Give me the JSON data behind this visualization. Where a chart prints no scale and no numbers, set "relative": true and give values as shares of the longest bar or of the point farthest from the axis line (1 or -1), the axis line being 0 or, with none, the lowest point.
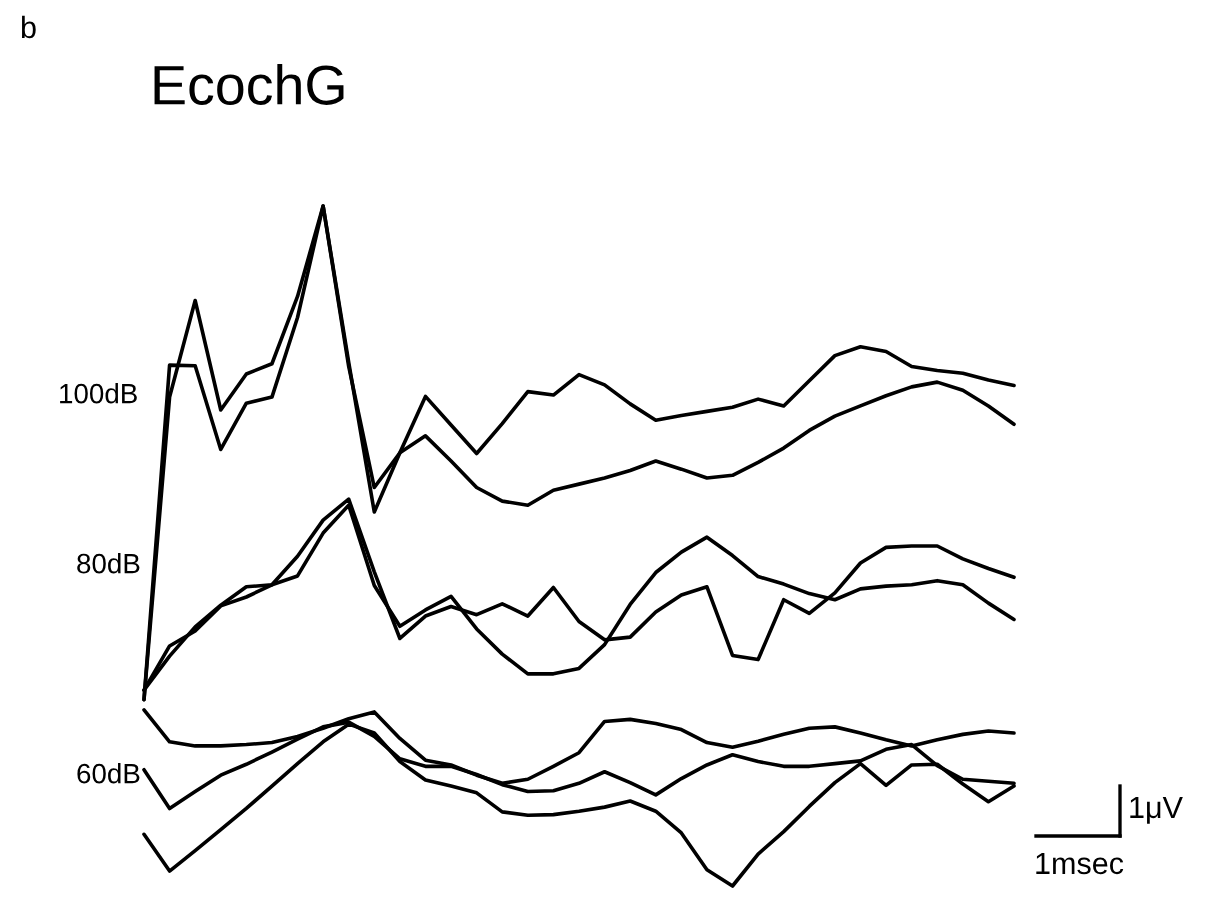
{
  "chart_data": {
    "type": "line",
    "title": "EcochG",
    "relative": true,
    "tick_labels": false,
    "legend": false,
    "marker": "none",
    "line_style": "solid",
    "annotations": [
      "b",
      "100dB",
      "80dB",
      "60dB",
      "1μV",
      "1msec"
    ],
    "categories": [
      null,
      null,
      null,
      null,
      null,
      null,
      null,
      null,
      null,
      null,
      null,
      null,
      null,
      null,
      null,
      null,
      null,
      null,
      null,
      null,
      null,
      null,
      null,
      null,
      null,
      null,
      null,
      null,
      null,
      null,
      null,
      null,
      null,
      null,
      null
    ],
    "series": [
      {
        "color": "#000000",
        "values": [
          0.274,
          0.719,
          0.861,
          0.7,
          0.753,
          0.768,
          0.867,
          1.0,
          0.77,
          0.55,
          0.637,
          0.72,
          0.678,
          0.636,
          0.68,
          0.727,
          0.722,
          0.752,
          0.737,
          0.709,
          0.685,
          0.692,
          0.698,
          0.704,
          0.716,
          0.706,
          0.743,
          0.78,
          0.793,
          0.786,
          0.764,
          0.758,
          0.754,
          0.744,
          0.736
        ]
      },
      {
        "color": "#000000",
        "values": [
          0.274,
          0.766,
          0.765,
          0.642,
          0.71,
          0.719,
          0.836,
          1.0,
          0.764,
          0.586,
          0.637,
          0.662,
          0.625,
          0.586,
          0.566,
          0.56,
          0.582,
          0.591,
          0.6,
          0.611,
          0.625,
          0.613,
          0.6,
          0.604,
          0.623,
          0.644,
          0.67,
          0.691,
          0.706,
          0.721,
          0.734,
          0.741,
          0.729,
          0.706,
          0.679
        ]
      },
      {
        "color": "#000000",
        "values": [
          0.288,
          0.353,
          0.375,
          0.412,
          0.425,
          0.443,
          0.456,
          0.519,
          0.56,
          0.442,
          0.382,
          0.406,
          0.426,
          0.378,
          0.341,
          0.312,
          0.312,
          0.32,
          0.355,
          0.414,
          0.461,
          0.491,
          0.513,
          0.486,
          0.455,
          0.444,
          0.43,
          0.421,
          0.437,
          0.441,
          0.443,
          0.449,
          0.443,
          0.416,
          0.392
        ]
      },
      {
        "color": "#000000",
        "values": [
          0.288,
          0.338,
          0.381,
          0.413,
          0.44,
          0.443,
          0.485,
          0.538,
          0.569,
          0.462,
          0.364,
          0.397,
          0.411,
          0.399,
          0.415,
          0.397,
          0.439,
          0.389,
          0.362,
          0.366,
          0.403,
          0.428,
          0.44,
          0.339,
          0.333,
          0.421,
          0.401,
          0.431,
          0.475,
          0.498,
          0.5,
          0.5,
          0.481,
          0.467,
          0.454
        ]
      },
      {
        "color": "#000000",
        "values": [
          0.259,
          0.212,
          0.206,
          0.206,
          0.208,
          0.211,
          0.22,
          0.232,
          0.246,
          0.256,
          0.217,
          0.185,
          0.178,
          0.163,
          0.151,
          0.157,
          0.176,
          0.196,
          0.242,
          0.245,
          0.239,
          0.23,
          0.211,
          0.204,
          0.213,
          0.223,
          0.232,
          0.234,
          0.225,
          0.215,
          0.206,
          0.215,
          0.223,
          0.228,
          0.225
        ]
      },
      {
        "color": "#000000",
        "values": [
          0.171,
          0.114,
          0.139,
          0.163,
          0.179,
          0.197,
          0.216,
          0.234,
          0.241,
          0.22,
          0.187,
          0.176,
          0.176,
          0.164,
          0.149,
          0.139,
          0.14,
          0.151,
          0.168,
          0.152,
          0.134,
          0.158,
          0.178,
          0.193,
          0.183,
          0.176,
          0.176,
          0.18,
          0.184,
          0.201,
          0.208,
          0.177,
          0.157,
          0.154,
          0.151
        ]
      },
      {
        "color": "#000000",
        "values": [
          0.076,
          0.022,
          0.052,
          0.083,
          0.114,
          0.147,
          0.18,
          0.212,
          0.238,
          0.225,
          0.183,
          0.156,
          0.147,
          0.137,
          0.109,
          0.104,
          0.105,
          0.11,
          0.116,
          0.125,
          0.11,
          0.078,
          0.024,
          0.0,
          0.047,
          0.08,
          0.117,
          0.152,
          0.18,
          0.148,
          0.178,
          0.179,
          0.15,
          0.124,
          0.147
        ]
      }
    ]
  }
}
